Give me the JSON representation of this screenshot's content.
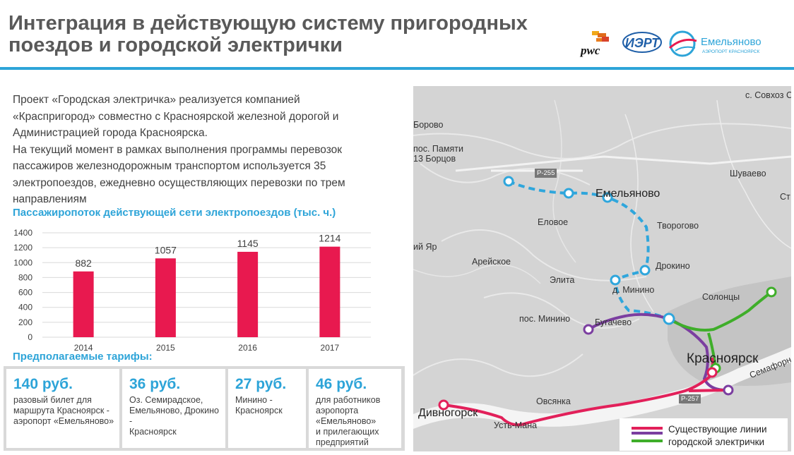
{
  "header": {
    "title_line1": "Интеграция в действующую систему пригородных",
    "title_line2": "поездов и городской электрички",
    "logos": {
      "pwc_text": "pwc",
      "iert_text": "ИЭРТ",
      "emelyanovo_name": "Емельяново",
      "emelyanovo_sub": "АЭРОПОРТ КРАСНОЯРСК"
    }
  },
  "intro": {
    "line1": "Проект «Городская электричка» реализуется компанией",
    "line2": "«Краспригород» совместно с Красноярской железной дорогой и",
    "line3": "Администрацией города Красноярска.",
    "line4": "На текущий момент в рамках выполнения программы перевозок",
    "line5": "пассажиров железнодорожным транспортом используется 35",
    "line6": "электропоездов, ежедневно осуществляющих перевозки по трем",
    "line7": "направлениям"
  },
  "chart_title": "Пассажиропоток действующей сети электропоездов (тыс. ч.)",
  "chart_data": {
    "type": "bar",
    "title": "Пассажиропоток действующей сети электропоездов (тыс. ч.)",
    "categories": [
      "2014",
      "2015",
      "2016",
      "2017"
    ],
    "values": [
      882,
      1057,
      1145,
      1214
    ],
    "y_ticks": [
      0,
      200,
      400,
      600,
      800,
      1000,
      1200,
      1400
    ],
    "ylim": [
      0,
      1400
    ],
    "grid": true,
    "bar_color": "#e8194f",
    "data_labels": true
  },
  "tariffs": {
    "title": "Предполагаемые тарифы:",
    "items": [
      {
        "price": "140 руб.",
        "line1": "разовый билет для",
        "line2": "маршрута Красноярск -",
        "line3": "аэропорт «Емельяново»",
        "line4": "",
        "line5": ""
      },
      {
        "price": "36 руб.",
        "line1": "Оз. Семирадское,",
        "line2": "Емельяново, Дрокино -",
        "line3": "Красноярск",
        "line4": "",
        "line5": ""
      },
      {
        "price": "27 руб.",
        "line1": "Минино -",
        "line2": "Красноярск",
        "line3": "",
        "line4": "",
        "line5": ""
      },
      {
        "price": "46 руб.",
        "line1": "для работников",
        "line2": "аэропорта",
        "line3": "«Емельяново»",
        "line4": "и прилегающих",
        "line5": "предприятий"
      }
    ]
  },
  "map": {
    "labels": {
      "sovkhoz": "с. Совхоз С",
      "borovoe": "Борово",
      "pamyati1": "пос. Памяти",
      "pamyati2": "13 Борцов",
      "shuvaevo": "Шуваево",
      "emelyanovo": "Емельяново",
      "st": "Ст",
      "eloe": "Еловое",
      "tvorogovo": "Творогово",
      "yar": "ий Яр",
      "areyskoe": "Арейское",
      "drokino": "Дрокино",
      "elita": "Элита",
      "minino": "д. Минино",
      "solontsy": "Солонцы",
      "pos_minino": "пос. Минино",
      "bugachevo": "Бугачево",
      "krasnoyarsk": "Красноярск",
      "semafor": "Семафорн",
      "ovsyanka": "Овсянка",
      "divnogorsk": "Дивногорск",
      "ust_mana": "Усть-Мана",
      "road_r255": "Р-255",
      "road_r257": "Р-257"
    },
    "legend": {
      "line1": "Существующие линии",
      "line2": "городской электрички"
    },
    "colors": {
      "planned": "#2fa6dc",
      "existing_red": "#e2205a",
      "existing_purple": "#7b3ea0",
      "existing_green": "#3fae2a"
    }
  },
  "colors": {
    "accent": "#2da4d8",
    "bar": "#e8194f",
    "title_gray": "#595959"
  }
}
